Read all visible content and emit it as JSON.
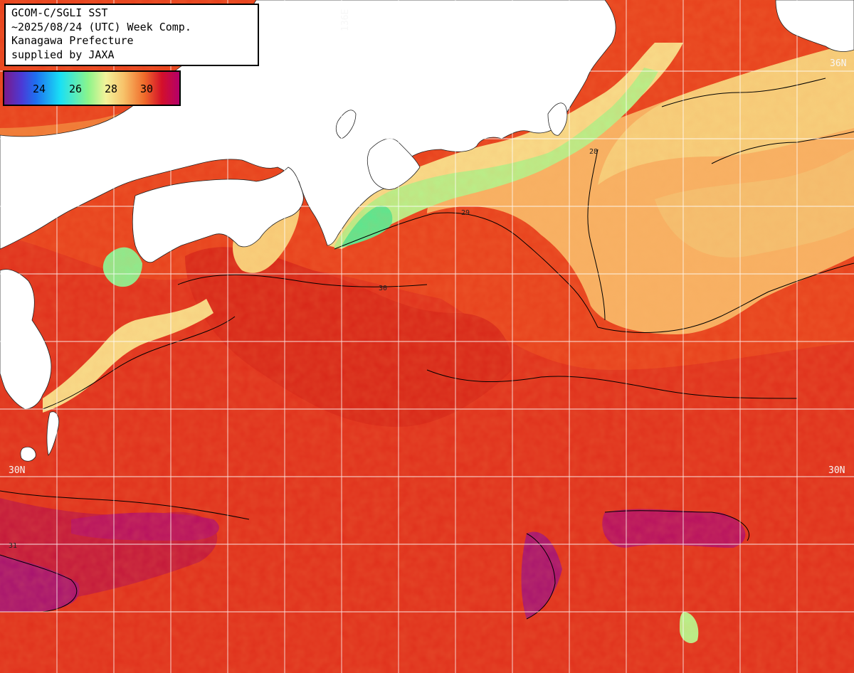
{
  "title": {
    "line1": "GCOM-C/SGLI SST",
    "line2": "~2025/08/24 (UTC) Week Comp.",
    "line3": "Kanagawa Prefecture",
    "line4": "supplied by JAXA"
  },
  "colorbar": {
    "ticks": [
      "24",
      "26",
      "28",
      "30"
    ]
  },
  "grid_labels": {
    "lon_136E": "136E",
    "lat_36N": "36N",
    "lat_30N_left": "30N",
    "lat_30N_right": "30N"
  },
  "contour_labels": [
    "28",
    "29",
    "30",
    "31"
  ],
  "colors": {
    "land": "#ffffff",
    "sst_31": "#b8105e",
    "sst_30": "#e0301c",
    "sst_29": "#f46a28",
    "sst_28": "#f8c87a",
    "sst_27": "#b8f08a",
    "sst_26": "#5ae890",
    "grid": "#ffffff",
    "contour": "#000000"
  }
}
